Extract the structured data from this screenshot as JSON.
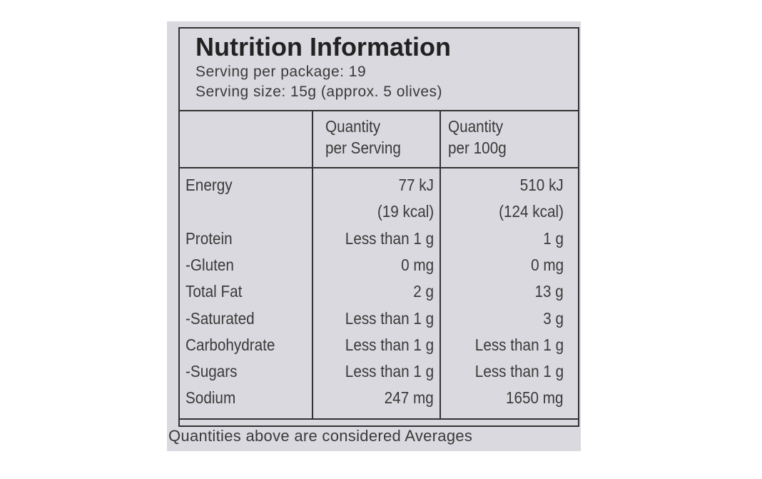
{
  "header": {
    "title": "Nutrition Information",
    "serving_per_package": "Serving per package: 19",
    "serving_size": "Serving  size: 15g (approx. 5 olives)"
  },
  "table": {
    "columns": [
      [
        "Quantity",
        "per Serving"
      ],
      [
        "Quantity",
        "per 100g"
      ]
    ],
    "rows": [
      {
        "label": "Energy",
        "per_serving": "77 kJ",
        "per_100g": "510 kJ"
      },
      {
        "per_serving": "(19 kcal)",
        "per_100g": "(124 kcal)"
      },
      {
        "label": "Protein",
        "per_serving": "Less than 1 g",
        "per_100g": "1 g"
      },
      {
        "label": "-Gluten",
        "per_serving": "0 mg",
        "per_100g": "0 mg"
      },
      {
        "label": "Total Fat",
        "per_serving": "2 g",
        "per_100g": "13 g"
      },
      {
        "label": "-Saturated",
        "per_serving": "Less than 1 g",
        "per_100g": "3 g"
      },
      {
        "label": "Carbohydrate",
        "per_serving": "Less than 1 g",
        "per_100g": "Less than 1 g"
      },
      {
        "label": "-Sugars",
        "per_serving": "Less than 1 g",
        "per_100g": "Less than 1 g"
      },
      {
        "label": "Sodium",
        "per_serving": "247 mg",
        "per_100g": "1650 mg"
      }
    ]
  },
  "footer": "Quantities above are considered Averages"
}
